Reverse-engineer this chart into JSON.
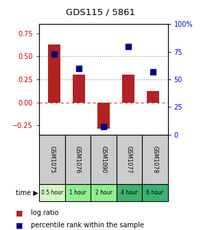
{
  "title": "GDS115 / 5861",
  "samples": [
    "GSM1075",
    "GSM1076",
    "GSM1090",
    "GSM1077",
    "GSM1078"
  ],
  "time_labels": [
    "0.5 hour",
    "1 hour",
    "2 hour",
    "4 hour",
    "6 hour"
  ],
  "time_colors": [
    "#d6f5c6",
    "#90ee90",
    "#90ee90",
    "#3cb371",
    "#3cb371"
  ],
  "log_ratio": [
    0.63,
    0.3,
    -0.29,
    0.3,
    0.12
  ],
  "percentile": [
    73,
    60,
    7,
    80,
    57
  ],
  "bar_color": "#b22222",
  "dot_color": "#00008b",
  "ylim_left": [
    -0.35,
    0.85
  ],
  "ylim_right": [
    0,
    100
  ],
  "yticks_left": [
    -0.25,
    0,
    0.25,
    0.5,
    0.75
  ],
  "yticks_right": [
    0,
    25,
    50,
    75,
    100
  ],
  "hline_y": [
    0.25,
    0.5
  ],
  "zero_line_color": "#cc4444",
  "bar_width": 0.5,
  "dot_size": 40,
  "left_tick_color": "#cc0000",
  "right_tick_color": "#0000cc"
}
